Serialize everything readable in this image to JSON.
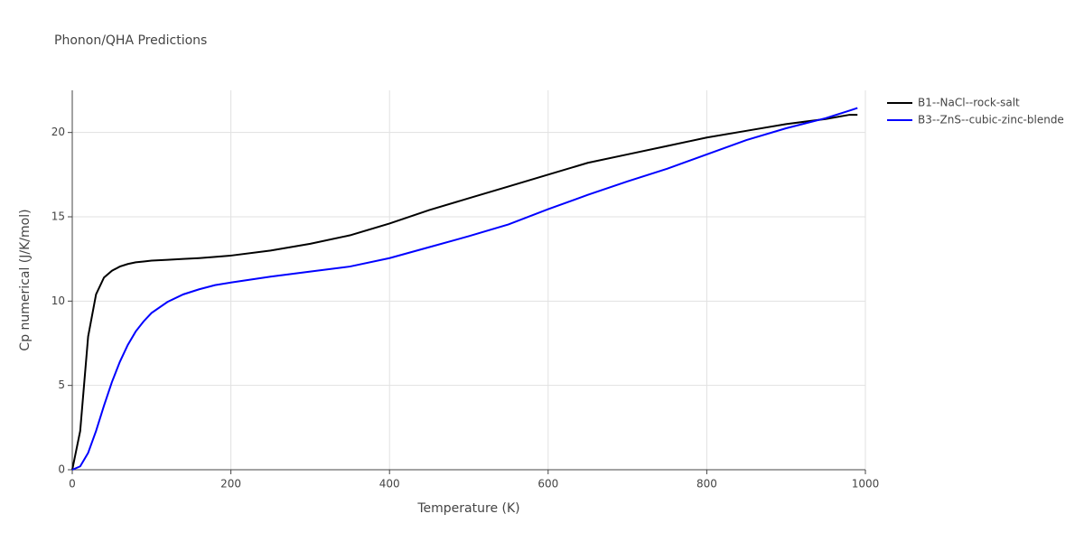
{
  "chart_data": {
    "type": "line",
    "title": "Phonon/QHA Predictions",
    "x_label": "Temperature (K)",
    "y_label": "Cp numerical (J/K/mol)",
    "x": [
      0,
      10,
      20,
      30,
      40,
      50,
      60,
      70,
      80,
      90,
      100,
      120,
      140,
      160,
      180,
      200,
      250,
      300,
      350,
      400,
      450,
      500,
      550,
      600,
      650,
      700,
      750,
      800,
      850,
      900,
      950,
      980,
      990
    ],
    "series": [
      {
        "name": "B1--NaCl--rock-salt",
        "color": "#000000",
        "values": [
          0,
          2.3,
          7.9,
          10.4,
          11.4,
          11.8,
          12.05,
          12.2,
          12.3,
          12.35,
          12.4,
          12.45,
          12.5,
          12.55,
          12.62,
          12.7,
          13.0,
          13.4,
          13.9,
          14.6,
          15.4,
          16.1,
          16.8,
          17.5,
          18.2,
          18.7,
          19.2,
          19.7,
          20.1,
          20.5,
          20.8,
          21.05,
          21.05
        ]
      },
      {
        "name": "B3--ZnS--cubic-zinc-blende",
        "color": "#0000ff",
        "values": [
          0,
          0.2,
          1.0,
          2.3,
          3.8,
          5.2,
          6.4,
          7.4,
          8.2,
          8.8,
          9.3,
          9.95,
          10.4,
          10.7,
          10.95,
          11.1,
          11.45,
          11.75,
          12.05,
          12.55,
          13.2,
          13.85,
          14.55,
          15.45,
          16.3,
          17.1,
          17.85,
          18.7,
          19.55,
          20.25,
          20.85,
          21.3,
          21.45
        ]
      }
    ],
    "xlim": [
      0,
      1000
    ],
    "xticks": [
      0,
      200,
      400,
      600,
      800,
      1000
    ],
    "ylim": [
      0,
      22.5
    ],
    "yticks": [
      0,
      5,
      10,
      15,
      20
    ],
    "grid": true
  }
}
